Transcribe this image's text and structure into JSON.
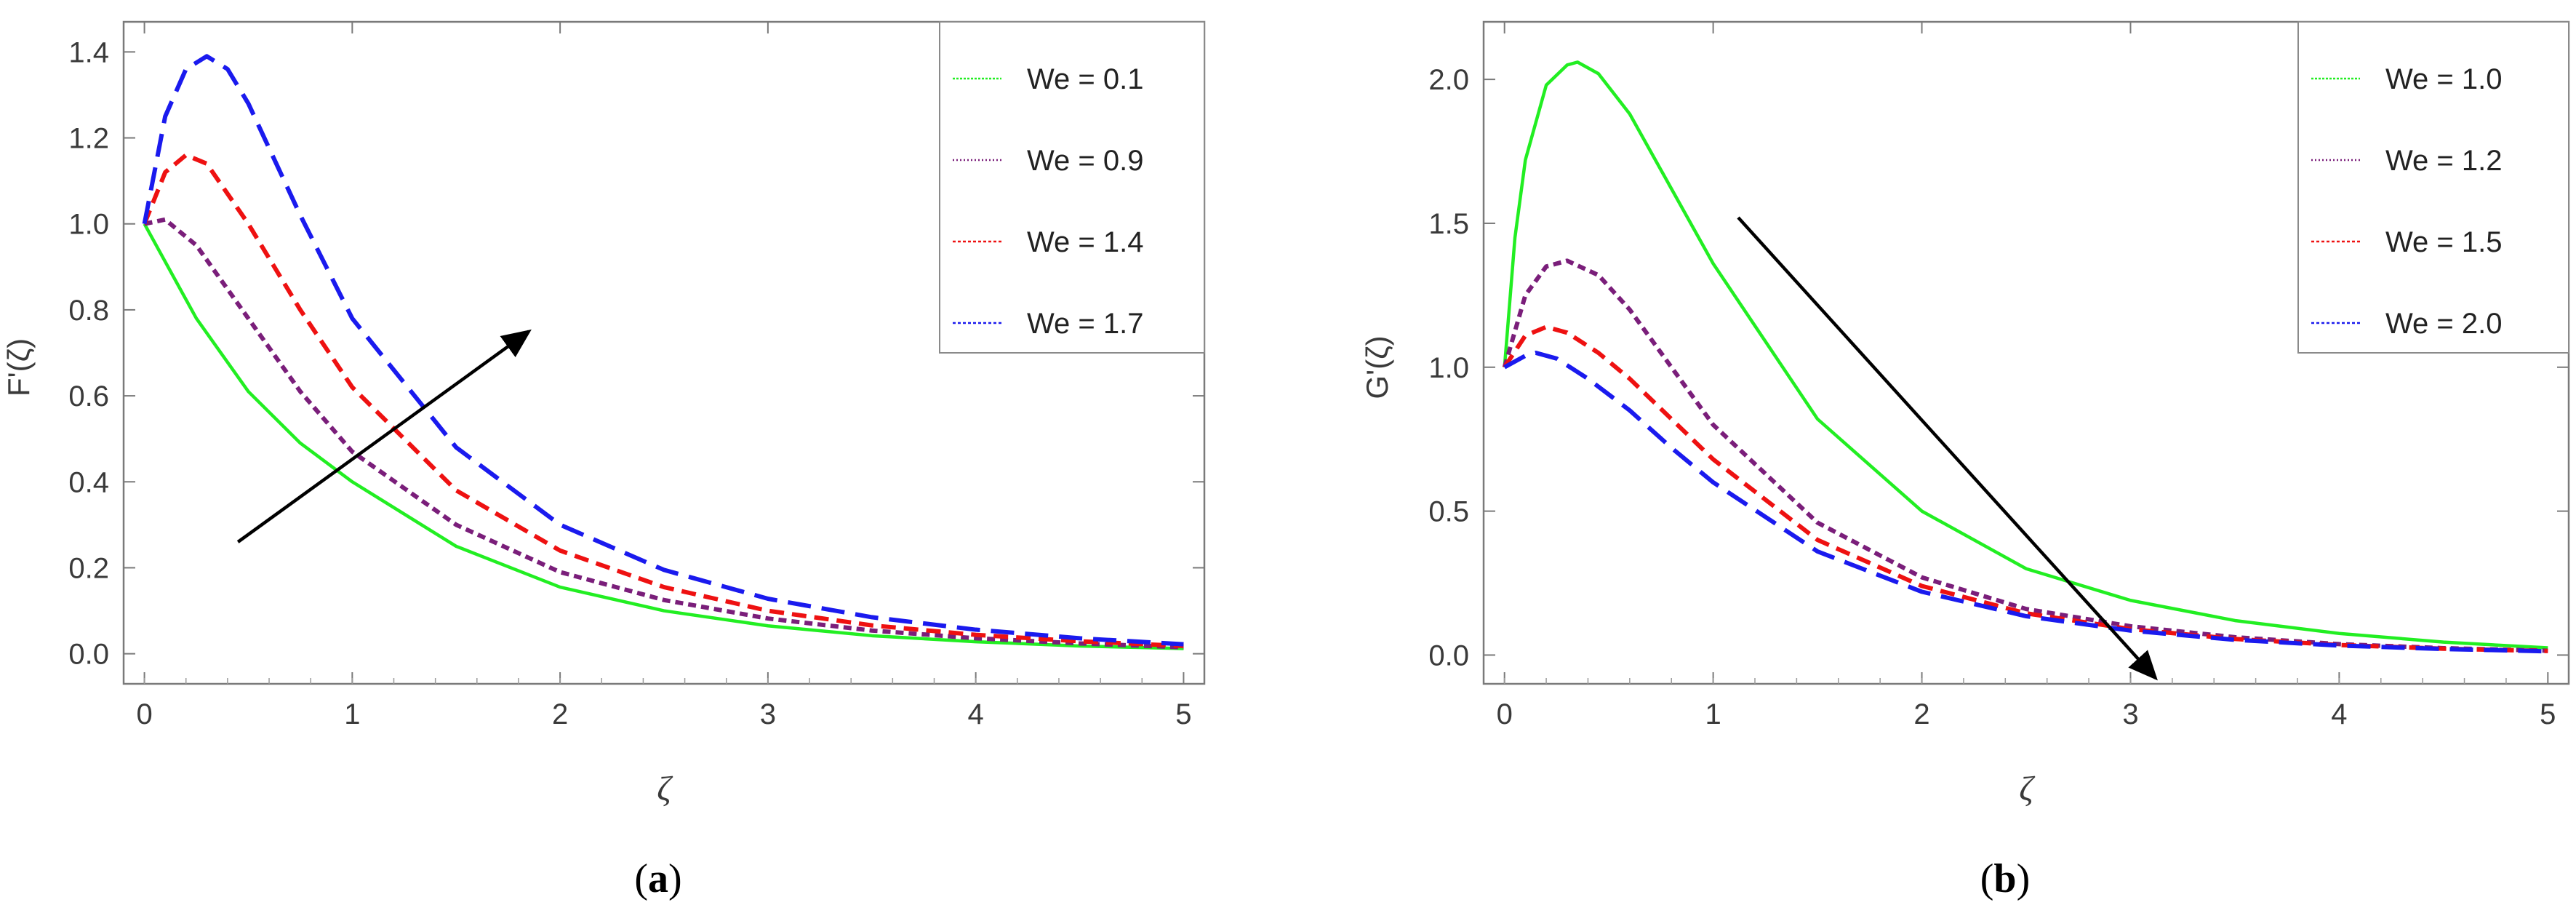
{
  "chart_data": [
    {
      "id": "a",
      "type": "line",
      "title": "",
      "caption_letter": "a",
      "xlabel": "ζ",
      "ylabel": "F'(ζ)",
      "xlim": [
        -0.1,
        5.1
      ],
      "ylim": [
        -0.07,
        1.47
      ],
      "xticks": [
        0,
        1,
        2,
        3,
        4,
        5
      ],
      "xtick_labels": [
        "0",
        "1",
        "2",
        "3",
        "4",
        "5"
      ],
      "yticks": [
        0.0,
        0.2,
        0.4,
        0.6,
        0.8,
        1.0,
        1.2,
        1.4
      ],
      "ytick_labels": [
        "0.0",
        "0.2",
        "0.4",
        "0.6",
        "0.8",
        "1.0",
        "1.2",
        "1.4"
      ],
      "legend_position": "top-right",
      "series": [
        {
          "name": "We = 0.1",
          "color": "#22ee22",
          "dash": "solid",
          "x": [
            0,
            0.25,
            0.5,
            0.75,
            1,
            1.5,
            2,
            2.5,
            3,
            3.5,
            4,
            4.5,
            5
          ],
          "y": [
            1.0,
            0.78,
            0.61,
            0.49,
            0.4,
            0.25,
            0.155,
            0.1,
            0.065,
            0.042,
            0.028,
            0.018,
            0.012
          ]
        },
        {
          "name": "We = 0.9",
          "color": "#7a1e7a",
          "dash": "short",
          "x": [
            0,
            0.1,
            0.25,
            0.5,
            0.75,
            1,
            1.5,
            2,
            2.5,
            3,
            3.5,
            4,
            4.5,
            5
          ],
          "y": [
            1.0,
            1.01,
            0.95,
            0.78,
            0.61,
            0.47,
            0.3,
            0.19,
            0.125,
            0.082,
            0.054,
            0.036,
            0.024,
            0.015
          ]
        },
        {
          "name": "We = 1.4",
          "color": "#ee1111",
          "dash": "medium",
          "x": [
            0,
            0.1,
            0.2,
            0.3,
            0.5,
            0.75,
            1,
            1.5,
            2,
            2.5,
            3,
            3.5,
            4,
            4.5,
            5
          ],
          "y": [
            1.0,
            1.12,
            1.16,
            1.14,
            1.0,
            0.8,
            0.62,
            0.38,
            0.24,
            0.155,
            0.1,
            0.066,
            0.044,
            0.029,
            0.018
          ]
        },
        {
          "name": "We = 1.7",
          "color": "#1a1aee",
          "dash": "long",
          "x": [
            0,
            0.1,
            0.2,
            0.3,
            0.4,
            0.5,
            0.75,
            1,
            1.5,
            2,
            2.5,
            3,
            3.5,
            4,
            4.5,
            5
          ],
          "y": [
            1.0,
            1.25,
            1.36,
            1.39,
            1.36,
            1.28,
            1.02,
            0.78,
            0.48,
            0.3,
            0.195,
            0.128,
            0.085,
            0.056,
            0.036,
            0.022
          ]
        }
      ],
      "arrow": {
        "from": [
          0.45,
          0.26
        ],
        "to": [
          1.85,
          0.75
        ],
        "direction": "increasing We"
      }
    },
    {
      "id": "b",
      "type": "line",
      "title": "",
      "caption_letter": "b",
      "xlabel": "ζ",
      "ylabel": "G'(ζ)",
      "xlim": [
        -0.1,
        5.1
      ],
      "ylim": [
        -0.1,
        2.2
      ],
      "xticks": [
        0,
        1,
        2,
        3,
        4,
        5
      ],
      "xtick_labels": [
        "0",
        "1",
        "2",
        "3",
        "4",
        "5"
      ],
      "yticks": [
        0.0,
        0.5,
        1.0,
        1.5,
        2.0
      ],
      "ytick_labels": [
        "0.0",
        "0.5",
        "1.0",
        "1.5",
        "2.0"
      ],
      "legend_position": "top-right",
      "series": [
        {
          "name": "We = 1.0",
          "color": "#22ee22",
          "dash": "solid",
          "x": [
            0,
            0.05,
            0.1,
            0.2,
            0.3,
            0.35,
            0.45,
            0.6,
            0.8,
            1,
            1.5,
            2,
            2.5,
            3,
            3.5,
            4,
            4.5,
            5
          ],
          "y": [
            1.0,
            1.45,
            1.72,
            1.98,
            2.05,
            2.06,
            2.02,
            1.88,
            1.62,
            1.36,
            0.82,
            0.5,
            0.3,
            0.19,
            0.12,
            0.075,
            0.045,
            0.025
          ]
        },
        {
          "name": "We = 1.2",
          "color": "#7a1e7a",
          "dash": "short",
          "x": [
            0,
            0.1,
            0.2,
            0.3,
            0.45,
            0.6,
            0.8,
            1,
            1.5,
            2,
            2.5,
            3,
            3.5,
            4,
            4.5,
            5
          ],
          "y": [
            1.0,
            1.25,
            1.35,
            1.37,
            1.32,
            1.2,
            1.0,
            0.8,
            0.46,
            0.27,
            0.16,
            0.1,
            0.062,
            0.038,
            0.024,
            0.015
          ]
        },
        {
          "name": "We = 1.5",
          "color": "#ee1111",
          "dash": "medium",
          "x": [
            0,
            0.1,
            0.2,
            0.3,
            0.45,
            0.6,
            0.8,
            1,
            1.5,
            2,
            2.5,
            3,
            3.5,
            4,
            4.5,
            5
          ],
          "y": [
            1.0,
            1.11,
            1.14,
            1.12,
            1.05,
            0.96,
            0.82,
            0.68,
            0.4,
            0.24,
            0.145,
            0.09,
            0.056,
            0.035,
            0.022,
            0.014
          ]
        },
        {
          "name": "We = 2.0",
          "color": "#1a1aee",
          "dash": "long",
          "x": [
            0,
            0.1,
            0.15,
            0.25,
            0.4,
            0.6,
            0.8,
            1,
            1.5,
            2,
            2.5,
            3,
            3.5,
            4,
            4.5,
            5
          ],
          "y": [
            1.0,
            1.04,
            1.05,
            1.03,
            0.96,
            0.85,
            0.72,
            0.6,
            0.36,
            0.22,
            0.135,
            0.085,
            0.053,
            0.033,
            0.021,
            0.013
          ]
        }
      ],
      "arrow": {
        "from": [
          1.12,
          1.52
        ],
        "to": [
          3.12,
          -0.08
        ],
        "direction": "increasing We"
      }
    }
  ]
}
